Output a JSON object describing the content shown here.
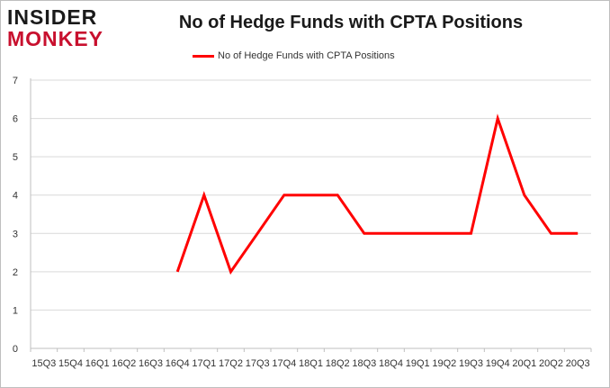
{
  "header": {
    "logo_line1": "INSIDER",
    "logo_line2": "MONKEY",
    "title": "No of Hedge Funds with CPTA Positions"
  },
  "colors": {
    "series": "#ff0000",
    "grid": "#d9d9d9",
    "logo_red": "#c8102e"
  },
  "chart_data": {
    "type": "line",
    "title": "No of Hedge Funds with CPTA Positions",
    "xlabel": "",
    "ylabel": "",
    "ylim": [
      0,
      7
    ],
    "yticks": [
      0,
      1,
      2,
      3,
      4,
      5,
      6,
      7
    ],
    "grid": true,
    "legend_position": "top-center",
    "categories": [
      "15Q3",
      "15Q4",
      "16Q1",
      "16Q2",
      "16Q3",
      "16Q4",
      "17Q1",
      "17Q2",
      "17Q3",
      "17Q4",
      "18Q1",
      "18Q2",
      "18Q3",
      "18Q4",
      "19Q1",
      "19Q2",
      "19Q3",
      "19Q4",
      "20Q1",
      "20Q2",
      "20Q3"
    ],
    "series": [
      {
        "name": "No of Hedge Funds with CPTA Positions",
        "values": [
          null,
          null,
          null,
          null,
          null,
          2,
          4,
          2,
          3,
          4,
          4,
          4,
          3,
          3,
          3,
          3,
          3,
          6,
          4,
          3,
          3
        ]
      }
    ]
  }
}
